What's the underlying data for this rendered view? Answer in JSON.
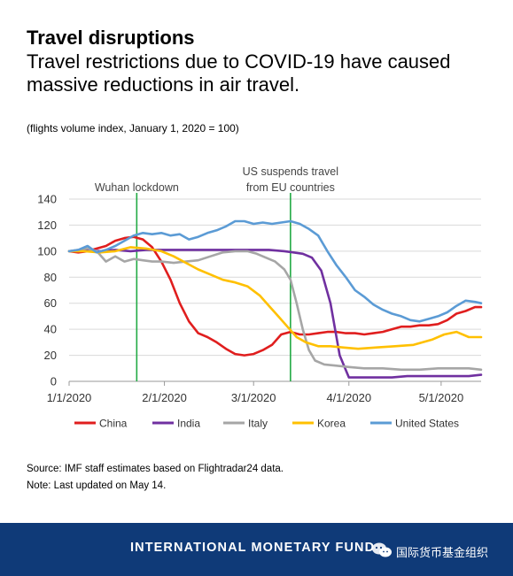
{
  "header": {
    "title": "Travel disruptions",
    "subtitle": "Travel restrictions due to COVID-19 have caused massive reductions in air travel.",
    "unit_note": "(flights volume index, January 1, 2020 = 100)"
  },
  "footer": {
    "source": "Source: IMF staff estimates based on Flightradar24 data.",
    "note": "Note: Last updated on May 14.",
    "org_name": "INTERNATIONAL MONETARY FUND",
    "wechat_name": "国际货币基金组织"
  },
  "chart_data": {
    "type": "line",
    "title": "",
    "xlabel": "",
    "ylabel": "",
    "ylim": [
      0,
      140
    ],
    "yticks": [
      "0",
      "20",
      "40",
      "60",
      "80",
      "100",
      "120",
      "140"
    ],
    "xticks": [
      {
        "date": "2020-01-01",
        "label": "1/1/2020"
      },
      {
        "date": "2020-02-01",
        "label": "2/1/2020"
      },
      {
        "date": "2020-03-01",
        "label": "3/1/2020"
      },
      {
        "date": "2020-04-01",
        "label": "4/1/2020"
      },
      {
        "date": "2020-05-01",
        "label": "5/1/2020"
      }
    ],
    "x_range": [
      "2020-01-01",
      "2020-05-14"
    ],
    "grid": "horizontal",
    "legend_position": "bottom",
    "annotations": [
      {
        "date": "2020-01-23",
        "text": "Wuhan lockdown",
        "color": "#22aa44"
      },
      {
        "date": "2020-03-13",
        "text": "US suspends travel from EU countries",
        "lines": [
          "US suspends travel",
          "from EU countries"
        ],
        "color": "#22aa44"
      }
    ],
    "series": [
      {
        "name": "China",
        "color": "#e01e1e",
        "x": [
          "2020-01-01",
          "2020-01-04",
          "2020-01-07",
          "2020-01-10",
          "2020-01-13",
          "2020-01-16",
          "2020-01-19",
          "2020-01-22",
          "2020-01-25",
          "2020-01-28",
          "2020-01-31",
          "2020-02-03",
          "2020-02-06",
          "2020-02-09",
          "2020-02-12",
          "2020-02-15",
          "2020-02-18",
          "2020-02-21",
          "2020-02-24",
          "2020-02-27",
          "2020-03-01",
          "2020-03-04",
          "2020-03-07",
          "2020-03-10",
          "2020-03-13",
          "2020-03-16",
          "2020-03-19",
          "2020-03-22",
          "2020-03-25",
          "2020-03-28",
          "2020-03-31",
          "2020-04-03",
          "2020-04-06",
          "2020-04-09",
          "2020-04-12",
          "2020-04-15",
          "2020-04-18",
          "2020-04-21",
          "2020-04-24",
          "2020-04-27",
          "2020-04-30",
          "2020-05-03",
          "2020-05-06",
          "2020-05-09",
          "2020-05-12",
          "2020-05-14"
        ],
        "values": [
          100,
          99,
          100,
          102,
          104,
          108,
          110,
          111,
          109,
          103,
          92,
          78,
          60,
          46,
          37,
          34,
          30,
          25,
          21,
          20,
          21,
          24,
          28,
          36,
          38,
          36,
          36,
          37,
          38,
          38,
          37,
          37,
          36,
          37,
          38,
          40,
          42,
          42,
          43,
          43,
          44,
          47,
          52,
          54,
          57,
          57
        ]
      },
      {
        "name": "India",
        "color": "#7030a0",
        "x": [
          "2020-01-01",
          "2020-01-06",
          "2020-01-11",
          "2020-01-16",
          "2020-01-21",
          "2020-01-26",
          "2020-01-31",
          "2020-02-05",
          "2020-02-10",
          "2020-02-15",
          "2020-02-20",
          "2020-02-25",
          "2020-03-01",
          "2020-03-06",
          "2020-03-11",
          "2020-03-14",
          "2020-03-17",
          "2020-03-20",
          "2020-03-23",
          "2020-03-26",
          "2020-03-29",
          "2020-04-01",
          "2020-04-05",
          "2020-04-10",
          "2020-04-15",
          "2020-04-20",
          "2020-04-25",
          "2020-04-30",
          "2020-05-05",
          "2020-05-10",
          "2020-05-14"
        ],
        "values": [
          100,
          101,
          100,
          101,
          100,
          101,
          101,
          101,
          101,
          101,
          101,
          101,
          101,
          101,
          100,
          99,
          98,
          95,
          85,
          60,
          20,
          3,
          3,
          3,
          3,
          4,
          4,
          4,
          4,
          4,
          5
        ]
      },
      {
        "name": "Italy",
        "color": "#a6a6a6",
        "x": [
          "2020-01-01",
          "2020-01-04",
          "2020-01-07",
          "2020-01-10",
          "2020-01-13",
          "2020-01-16",
          "2020-01-19",
          "2020-01-22",
          "2020-01-25",
          "2020-01-28",
          "2020-01-31",
          "2020-02-04",
          "2020-02-08",
          "2020-02-12",
          "2020-02-16",
          "2020-02-20",
          "2020-02-24",
          "2020-02-28",
          "2020-03-02",
          "2020-03-05",
          "2020-03-08",
          "2020-03-11",
          "2020-03-13",
          "2020-03-15",
          "2020-03-17",
          "2020-03-19",
          "2020-03-21",
          "2020-03-24",
          "2020-03-28",
          "2020-04-01",
          "2020-04-06",
          "2020-04-12",
          "2020-04-18",
          "2020-04-24",
          "2020-04-30",
          "2020-05-06",
          "2020-05-10",
          "2020-05-14"
        ],
        "values": [
          100,
          101,
          102,
          100,
          92,
          96,
          92,
          94,
          93,
          92,
          92,
          91,
          92,
          93,
          96,
          99,
          100,
          100,
          98,
          95,
          92,
          86,
          78,
          60,
          40,
          24,
          16,
          13,
          12,
          11,
          10,
          10,
          9,
          9,
          10,
          10,
          10,
          9
        ]
      },
      {
        "name": "Korea",
        "color": "#ffc000",
        "x": [
          "2020-01-01",
          "2020-01-06",
          "2020-01-11",
          "2020-01-16",
          "2020-01-21",
          "2020-01-26",
          "2020-01-31",
          "2020-02-04",
          "2020-02-08",
          "2020-02-12",
          "2020-02-16",
          "2020-02-20",
          "2020-02-24",
          "2020-02-28",
          "2020-03-03",
          "2020-03-06",
          "2020-03-09",
          "2020-03-12",
          "2020-03-15",
          "2020-03-18",
          "2020-03-22",
          "2020-03-26",
          "2020-03-30",
          "2020-04-04",
          "2020-04-10",
          "2020-04-16",
          "2020-04-22",
          "2020-04-28",
          "2020-05-02",
          "2020-05-06",
          "2020-05-10",
          "2020-05-14"
        ],
        "values": [
          100,
          100,
          99,
          100,
          103,
          102,
          100,
          96,
          91,
          86,
          82,
          78,
          76,
          73,
          66,
          58,
          50,
          42,
          34,
          30,
          27,
          27,
          26,
          25,
          26,
          27,
          28,
          32,
          36,
          38,
          34,
          34
        ]
      },
      {
        "name": "United States",
        "color": "#5b9bd5",
        "x": [
          "2020-01-01",
          "2020-01-04",
          "2020-01-07",
          "2020-01-10",
          "2020-01-13",
          "2020-01-16",
          "2020-01-19",
          "2020-01-22",
          "2020-01-25",
          "2020-01-28",
          "2020-01-31",
          "2020-02-03",
          "2020-02-06",
          "2020-02-09",
          "2020-02-12",
          "2020-02-15",
          "2020-02-18",
          "2020-02-21",
          "2020-02-24",
          "2020-02-27",
          "2020-03-01",
          "2020-03-04",
          "2020-03-07",
          "2020-03-10",
          "2020-03-13",
          "2020-03-16",
          "2020-03-19",
          "2020-03-22",
          "2020-03-25",
          "2020-03-28",
          "2020-03-31",
          "2020-04-03",
          "2020-04-06",
          "2020-04-09",
          "2020-04-12",
          "2020-04-15",
          "2020-04-18",
          "2020-04-21",
          "2020-04-24",
          "2020-04-27",
          "2020-04-30",
          "2020-05-03",
          "2020-05-06",
          "2020-05-09",
          "2020-05-12",
          "2020-05-14"
        ],
        "values": [
          100,
          101,
          104,
          99,
          101,
          104,
          108,
          112,
          114,
          113,
          114,
          112,
          113,
          109,
          111,
          114,
          116,
          119,
          123,
          123,
          121,
          122,
          121,
          122,
          123,
          121,
          117,
          112,
          100,
          89,
          80,
          70,
          65,
          59,
          55,
          52,
          50,
          47,
          46,
          48,
          50,
          53,
          58,
          62,
          61,
          60
        ]
      }
    ]
  }
}
